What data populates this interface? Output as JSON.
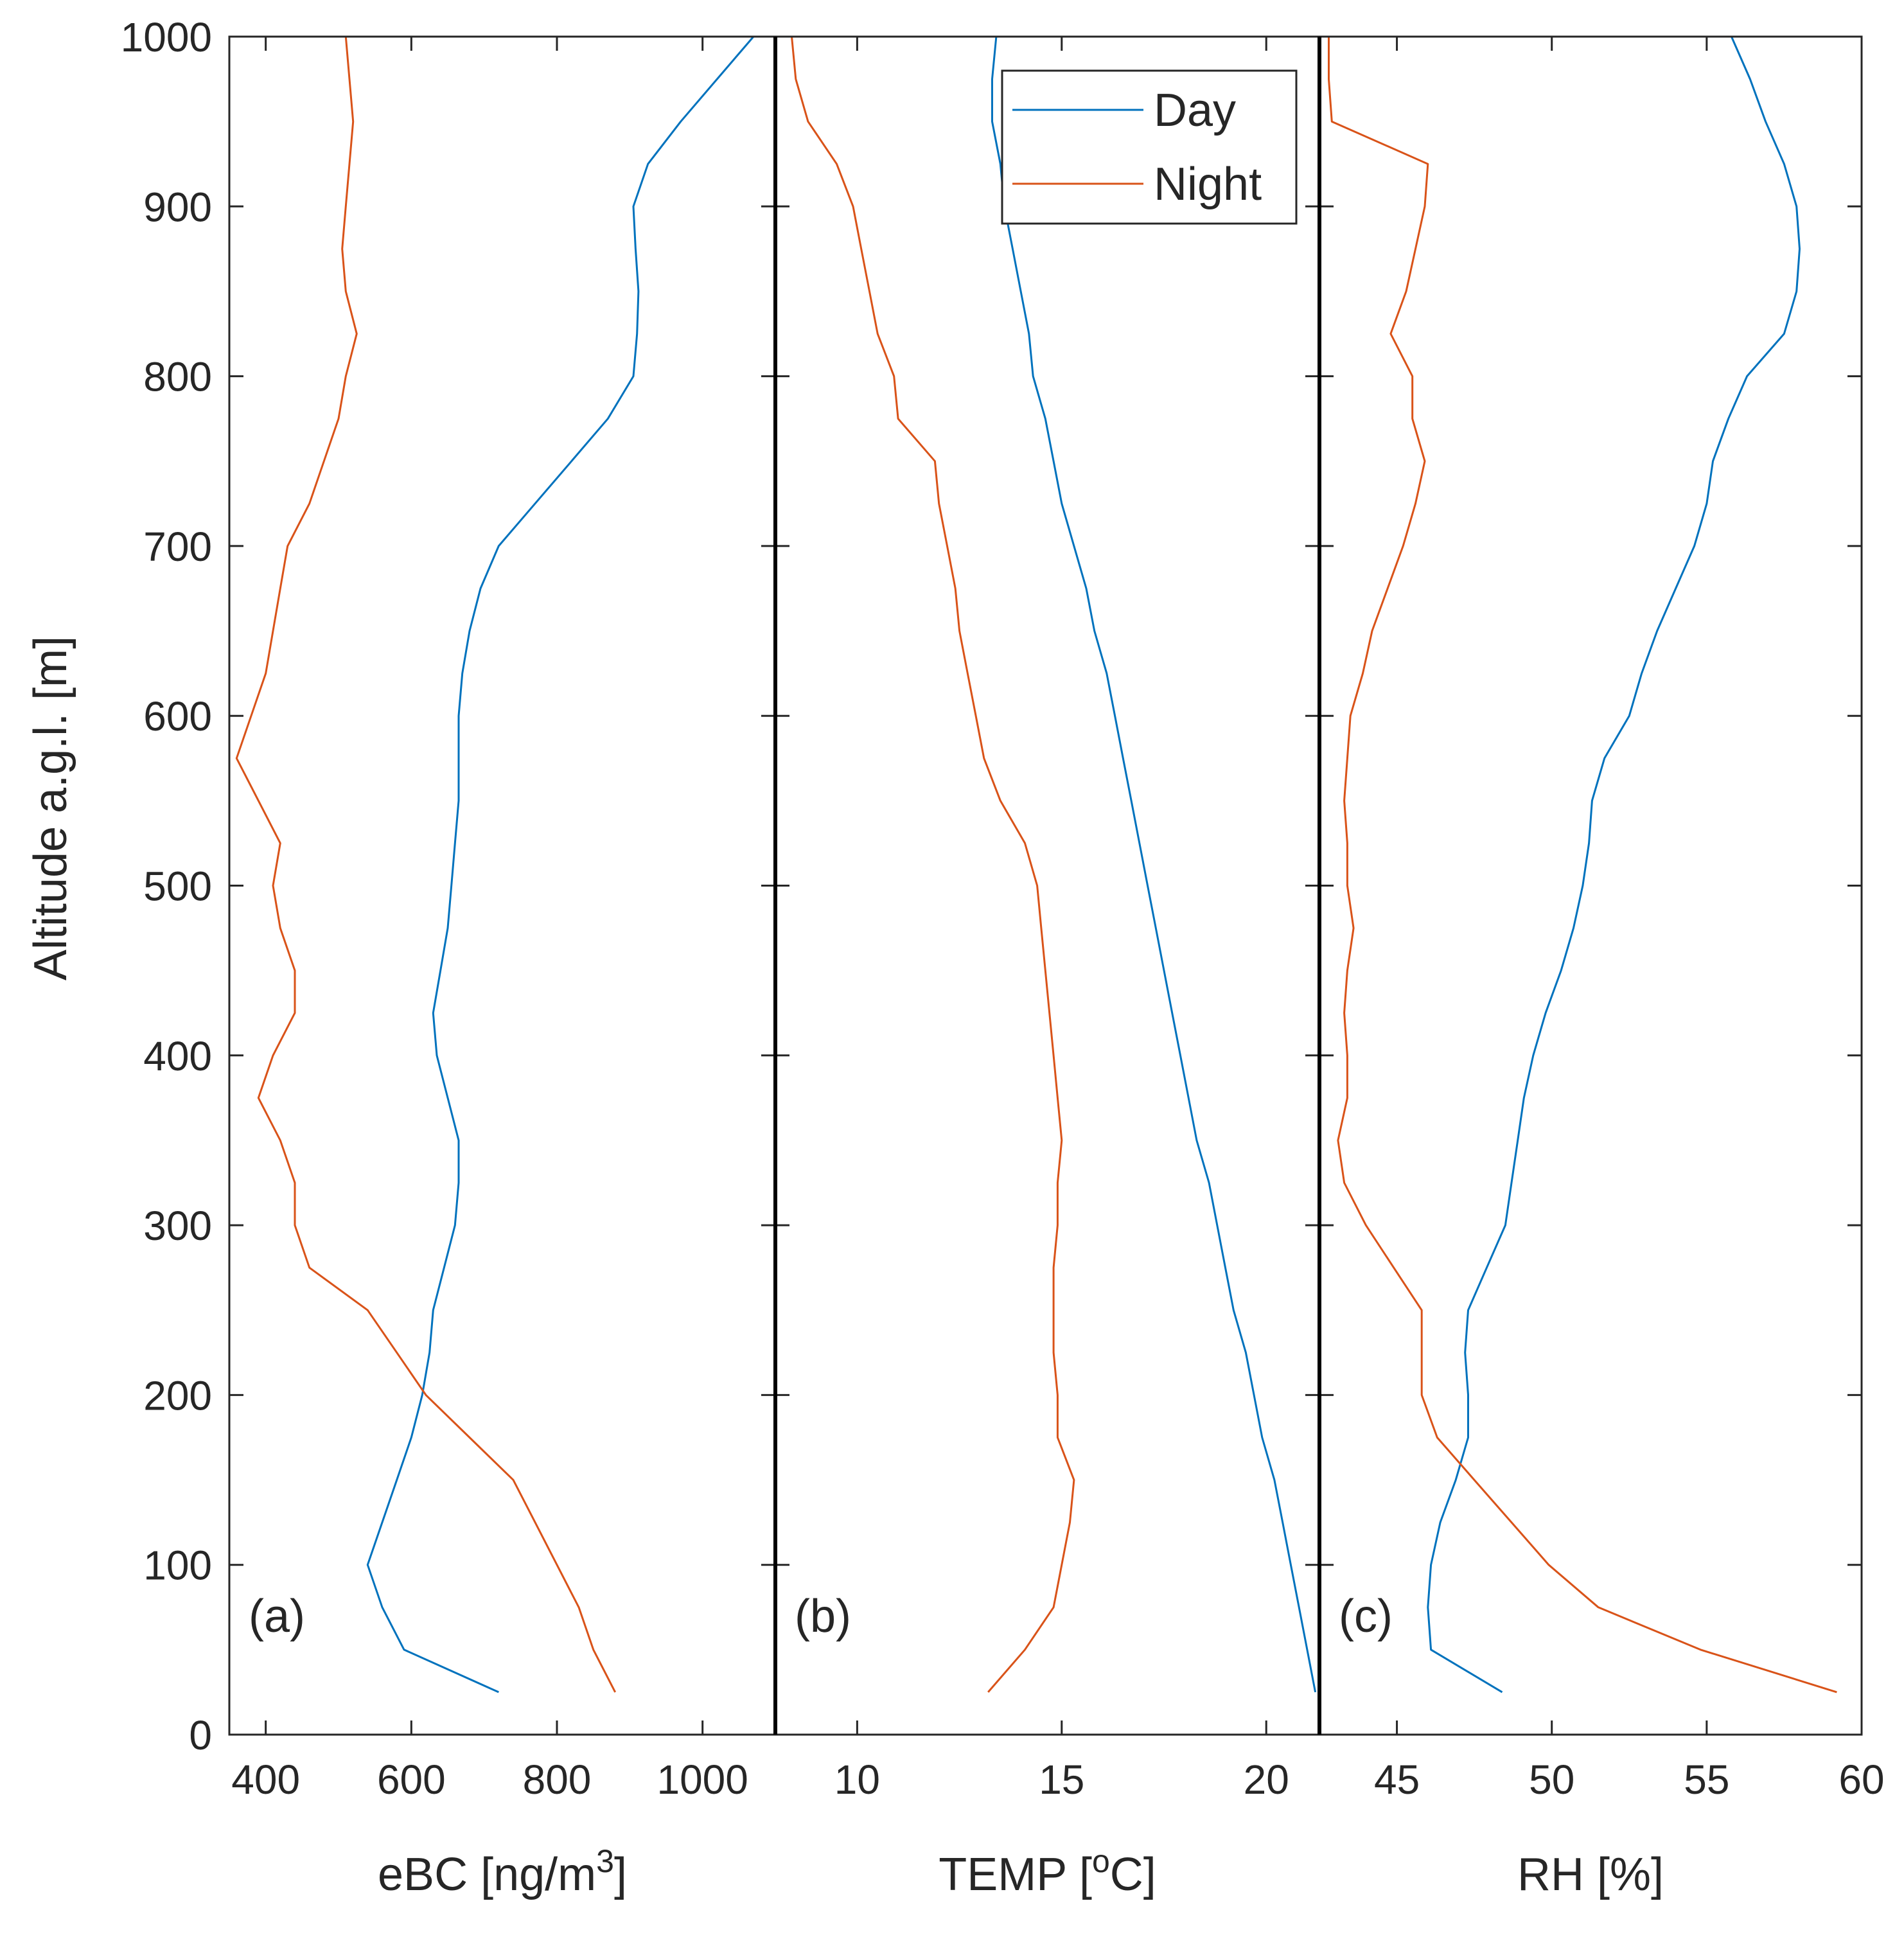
{
  "chart_data": {
    "type": "line",
    "y": [
      25,
      50,
      75,
      100,
      125,
      150,
      175,
      200,
      225,
      250,
      275,
      300,
      325,
      350,
      375,
      400,
      425,
      450,
      475,
      500,
      525,
      550,
      575,
      600,
      625,
      650,
      675,
      700,
      725,
      750,
      775,
      800,
      825,
      850,
      875,
      900,
      925,
      950,
      975,
      1000
    ],
    "ylabel": "Altitude a.g.l. [m]",
    "ylim": [
      0,
      1000
    ],
    "yticks": [
      0,
      100,
      200,
      300,
      400,
      500,
      600,
      700,
      800,
      900,
      1000
    ],
    "legend": {
      "entries": [
        "Day",
        "Night"
      ],
      "placement": "top-right of panel (b)"
    },
    "colors": {
      "Day": "#0072bd",
      "Night": "#d95319"
    },
    "panels": [
      {
        "id": "a",
        "tag": "(a)",
        "xlabel_main": "eBC [ng/m",
        "xlabel_sup": "3",
        "xlabel_tail": "]",
        "xlim": [
          350,
          1100
        ],
        "xticks": [
          400,
          600,
          800,
          1000
        ],
        "series": [
          {
            "name": "Day",
            "values": [
              720,
              590,
              560,
              540,
              560,
              580,
              600,
              615,
              625,
              630,
              645,
              660,
              665,
              665,
              650,
              635,
              630,
              640,
              650,
              655,
              660,
              665,
              665,
              665,
              670,
              680,
              695,
              720,
              770,
              820,
              870,
              905,
              910,
              912,
              908,
              905,
              925,
              970,
              1020,
              1070
            ]
          },
          {
            "name": "Night",
            "values": [
              880,
              850,
              830,
              800,
              770,
              740,
              680,
              620,
              580,
              540,
              460,
              440,
              440,
              420,
              390,
              410,
              440,
              440,
              420,
              410,
              420,
              390,
              360,
              380,
              400,
              410,
              420,
              430,
              460,
              480,
              500,
              510,
              525,
              510,
              505,
              510,
              515,
              520,
              515,
              510
            ]
          }
        ]
      },
      {
        "id": "b",
        "tag": "(b)",
        "xlabel_main": "TEMP [",
        "xlabel_sup": "o",
        "xlabel_tail": "C]",
        "xlim": [
          8,
          21.3
        ],
        "xticks": [
          10,
          15,
          20
        ],
        "series": [
          {
            "name": "Day",
            "values": [
              21.2,
              21,
              20.8,
              20.6,
              20.4,
              20.2,
              19.9,
              19.7,
              19.5,
              19.2,
              19.0,
              18.8,
              18.6,
              18.3,
              18.1,
              17.9,
              17.7,
              17.5,
              17.3,
              17.1,
              16.9,
              16.7,
              16.5,
              16.3,
              16.1,
              15.8,
              15.6,
              15.3,
              15.0,
              14.8,
              14.6,
              14.3,
              14.2,
              14.0,
              13.8,
              13.6,
              13.5,
              13.3,
              13.3,
              13.4
            ]
          },
          {
            "name": "Night",
            "values": [
              13.2,
              14.1,
              14.8,
              15.0,
              15.2,
              15.3,
              14.9,
              14.9,
              14.8,
              14.8,
              14.8,
              14.9,
              14.9,
              15.0,
              14.9,
              14.8,
              14.7,
              14.6,
              14.5,
              14.4,
              14.1,
              13.5,
              13.1,
              12.9,
              12.7,
              12.5,
              12.4,
              12.2,
              12.0,
              11.9,
              11.0,
              10.9,
              10.5,
              10.3,
              10.1,
              9.9,
              9.5,
              8.8,
              8.5,
              8.4
            ]
          }
        ]
      },
      {
        "id": "c",
        "tag": "(c)",
        "xlabel_main": "RH [%]",
        "xlabel_sup": "",
        "xlabel_tail": "",
        "xlim": [
          42.5,
          60
        ],
        "xticks": [
          45,
          50,
          55,
          60
        ],
        "series": [
          {
            "name": "Day",
            "values": [
              48.4,
              46.1,
              46.0,
              46.1,
              46.4,
              46.9,
              47.3,
              47.3,
              47.2,
              47.3,
              47.9,
              48.5,
              48.7,
              48.9,
              49.1,
              49.4,
              49.8,
              50.3,
              50.7,
              51.0,
              51.2,
              51.3,
              51.7,
              52.5,
              52.9,
              53.4,
              54.0,
              54.6,
              55.0,
              55.2,
              55.7,
              56.3,
              57.5,
              57.9,
              58.0,
              57.9,
              57.5,
              56.9,
              56.4,
              55.8
            ]
          },
          {
            "name": "Night",
            "values": [
              59.2,
              54.8,
              51.5,
              49.9,
              48.7,
              47.5,
              46.3,
              45.8,
              45.8,
              45.8,
              44.9,
              44.0,
              43.3,
              43.1,
              43.4,
              43.4,
              43.3,
              43.4,
              43.6,
              43.4,
              43.4,
              43.3,
              43.4,
              43.5,
              43.9,
              44.2,
              44.7,
              45.2,
              45.6,
              45.9,
              45.5,
              45.5,
              44.8,
              45.3,
              45.6,
              45.9,
              46.0,
              42.9,
              42.8,
              42.8
            ]
          }
        ]
      }
    ]
  }
}
